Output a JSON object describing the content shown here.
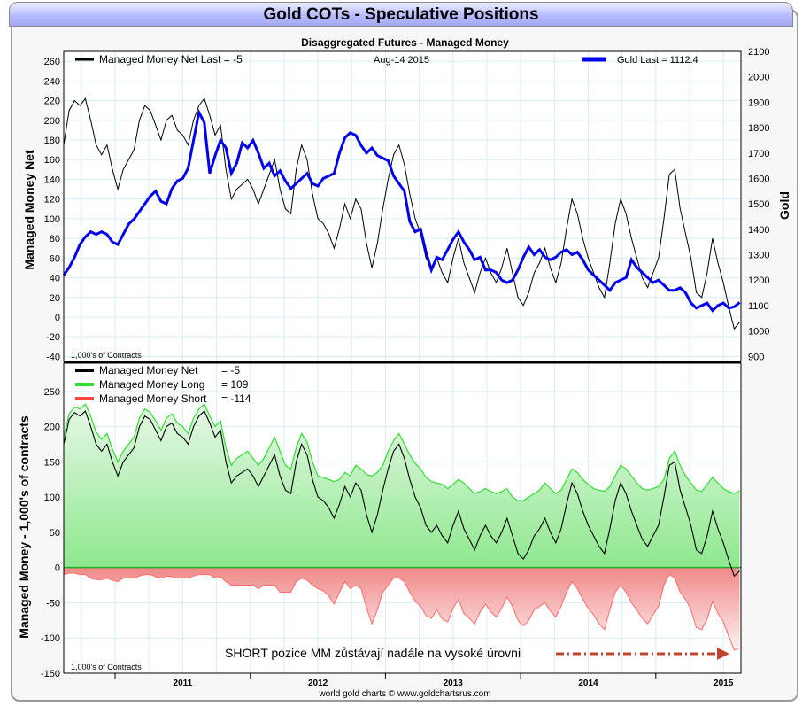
{
  "header": {
    "title": "Gold COTs - Speculative Positions",
    "subtitle": "Disaggregated Futures - Managed Money"
  },
  "footer": {
    "credit": "world gold charts © www.goldchartsrus.com"
  },
  "chart_data": [
    {
      "type": "line",
      "panel": "top",
      "date_label": "Aug-14  2015",
      "legend": [
        {
          "label": "Managed Money Net   Last = -5",
          "color": "#000000"
        },
        {
          "label": "Gold Last = 1112.4",
          "color": "#0000ee"
        }
      ],
      "ylabel_left": "Managed Money Net",
      "ylabel_right": "Gold",
      "units_note": "1,000's of Contracts",
      "ylim_left": [
        -45,
        270
      ],
      "ylim_right": [
        880,
        2100
      ],
      "yticks_left": [
        260,
        240,
        220,
        200,
        180,
        160,
        140,
        120,
        100,
        80,
        60,
        40,
        20,
        0,
        -20,
        -40
      ],
      "yticks_right": [
        2100,
        2000,
        1900,
        1800,
        1700,
        1600,
        1500,
        1400,
        1300,
        1200,
        1100,
        1000,
        900
      ],
      "x_years": [
        "2011",
        "2012",
        "2013",
        "2014",
        "2015"
      ],
      "xlim": [
        2010.62,
        2015.63
      ],
      "series": [
        {
          "name": "Managed Money Net",
          "color": "#000000",
          "axis": "left",
          "x": [
            2010.62,
            2010.66,
            2010.7,
            2010.74,
            2010.78,
            2010.82,
            2010.86,
            2010.9,
            2010.94,
            2010.98,
            2011.02,
            2011.06,
            2011.1,
            2011.14,
            2011.18,
            2011.22,
            2011.26,
            2011.3,
            2011.34,
            2011.38,
            2011.42,
            2011.46,
            2011.5,
            2011.54,
            2011.58,
            2011.62,
            2011.66,
            2011.7,
            2011.74,
            2011.78,
            2011.82,
            2011.86,
            2011.9,
            2011.94,
            2011.98,
            2012.02,
            2012.06,
            2012.1,
            2012.14,
            2012.18,
            2012.22,
            2012.26,
            2012.3,
            2012.34,
            2012.38,
            2012.42,
            2012.46,
            2012.5,
            2012.54,
            2012.58,
            2012.62,
            2012.66,
            2012.7,
            2012.74,
            2012.78,
            2012.82,
            2012.86,
            2012.9,
            2012.94,
            2012.98,
            2013.02,
            2013.06,
            2013.1,
            2013.14,
            2013.18,
            2013.22,
            2013.26,
            2013.3,
            2013.34,
            2013.38,
            2013.42,
            2013.46,
            2013.5,
            2013.54,
            2013.58,
            2013.62,
            2013.66,
            2013.7,
            2013.74,
            2013.78,
            2013.82,
            2013.86,
            2013.9,
            2013.94,
            2013.98,
            2014.02,
            2014.06,
            2014.1,
            2014.14,
            2014.18,
            2014.22,
            2014.26,
            2014.3,
            2014.34,
            2014.38,
            2014.42,
            2014.46,
            2014.5,
            2014.54,
            2014.58,
            2014.62,
            2014.66,
            2014.7,
            2014.74,
            2014.78,
            2014.82,
            2014.86,
            2014.9,
            2014.94,
            2014.98,
            2015.02,
            2015.06,
            2015.1,
            2015.14,
            2015.18,
            2015.22,
            2015.26,
            2015.3,
            2015.34,
            2015.38,
            2015.42,
            2015.46,
            2015.5,
            2015.54,
            2015.58,
            2015.62
          ],
          "values": [
            175,
            210,
            220,
            215,
            222,
            200,
            175,
            165,
            175,
            150,
            130,
            150,
            160,
            170,
            200,
            215,
            210,
            195,
            180,
            200,
            205,
            190,
            185,
            175,
            200,
            215,
            222,
            205,
            185,
            195,
            150,
            120,
            130,
            135,
            140,
            130,
            115,
            130,
            145,
            160,
            130,
            110,
            105,
            150,
            175,
            160,
            125,
            100,
            95,
            85,
            70,
            90,
            115,
            100,
            120,
            110,
            75,
            50,
            75,
            110,
            140,
            165,
            175,
            155,
            125,
            100,
            85,
            60,
            50,
            60,
            45,
            35,
            60,
            80,
            55,
            40,
            25,
            45,
            60,
            45,
            35,
            50,
            70,
            45,
            20,
            12,
            25,
            45,
            55,
            70,
            50,
            35,
            55,
            90,
            120,
            105,
            80,
            60,
            45,
            30,
            20,
            55,
            95,
            120,
            105,
            80,
            60,
            40,
            30,
            45,
            60,
            100,
            145,
            150,
            110,
            85,
            60,
            25,
            20,
            45,
            80,
            55,
            35,
            10,
            -12,
            -5
          ]
        },
        {
          "name": "Gold",
          "color": "#0000ee",
          "axis": "right",
          "x": [
            2010.62,
            2010.66,
            2010.7,
            2010.74,
            2010.78,
            2010.82,
            2010.86,
            2010.9,
            2010.94,
            2010.98,
            2011.02,
            2011.06,
            2011.1,
            2011.14,
            2011.18,
            2011.22,
            2011.26,
            2011.3,
            2011.34,
            2011.38,
            2011.42,
            2011.46,
            2011.5,
            2011.54,
            2011.58,
            2011.62,
            2011.66,
            2011.7,
            2011.74,
            2011.78,
            2011.82,
            2011.86,
            2011.9,
            2011.94,
            2011.98,
            2012.02,
            2012.06,
            2012.1,
            2012.14,
            2012.18,
            2012.22,
            2012.26,
            2012.3,
            2012.34,
            2012.38,
            2012.42,
            2012.46,
            2012.5,
            2012.54,
            2012.58,
            2012.62,
            2012.66,
            2012.7,
            2012.74,
            2012.78,
            2012.82,
            2012.86,
            2012.9,
            2012.94,
            2012.98,
            2013.02,
            2013.06,
            2013.1,
            2013.14,
            2013.18,
            2013.22,
            2013.26,
            2013.3,
            2013.34,
            2013.38,
            2013.42,
            2013.46,
            2013.5,
            2013.54,
            2013.58,
            2013.62,
            2013.66,
            2013.7,
            2013.74,
            2013.78,
            2013.82,
            2013.86,
            2013.9,
            2013.94,
            2013.98,
            2014.02,
            2014.06,
            2014.1,
            2014.14,
            2014.18,
            2014.22,
            2014.26,
            2014.3,
            2014.34,
            2014.38,
            2014.42,
            2014.46,
            2014.5,
            2014.54,
            2014.58,
            2014.62,
            2014.66,
            2014.7,
            2014.74,
            2014.78,
            2014.82,
            2014.86,
            2014.9,
            2014.94,
            2014.98,
            2015.02,
            2015.06,
            2015.1,
            2015.14,
            2015.18,
            2015.22,
            2015.26,
            2015.3,
            2015.34,
            2015.38,
            2015.42,
            2015.46,
            2015.5,
            2015.54,
            2015.58,
            2015.62
          ],
          "values": [
            1220,
            1250,
            1290,
            1340,
            1370,
            1390,
            1380,
            1390,
            1380,
            1350,
            1340,
            1380,
            1420,
            1440,
            1470,
            1500,
            1530,
            1550,
            1510,
            1500,
            1560,
            1590,
            1600,
            1640,
            1750,
            1860,
            1820,
            1620,
            1690,
            1750,
            1720,
            1620,
            1660,
            1740,
            1720,
            1750,
            1700,
            1640,
            1660,
            1610,
            1630,
            1590,
            1560,
            1580,
            1600,
            1620,
            1580,
            1570,
            1600,
            1610,
            1620,
            1700,
            1760,
            1780,
            1770,
            1730,
            1700,
            1720,
            1690,
            1680,
            1670,
            1610,
            1580,
            1550,
            1430,
            1390,
            1400,
            1310,
            1240,
            1290,
            1280,
            1320,
            1360,
            1390,
            1350,
            1320,
            1280,
            1290,
            1240,
            1240,
            1230,
            1200,
            1190,
            1200,
            1240,
            1290,
            1330,
            1300,
            1320,
            1290,
            1280,
            1290,
            1310,
            1320,
            1300,
            1310,
            1280,
            1240,
            1220,
            1200,
            1180,
            1160,
            1190,
            1200,
            1210,
            1280,
            1250,
            1230,
            1210,
            1190,
            1200,
            1180,
            1160,
            1160,
            1170,
            1150,
            1110,
            1090,
            1100,
            1110,
            1080,
            1100,
            1110,
            1090,
            1095,
            1112
          ]
        }
      ]
    },
    {
      "type": "area",
      "panel": "bottom",
      "legend": [
        {
          "label": "Managed Money Net",
          "value": "= -5",
          "color": "#000000"
        },
        {
          "label": "Managed Money Long",
          "value": "= 109",
          "color": "#33dd33"
        },
        {
          "label": "Managed Money Short",
          "value": "= -114",
          "color": "#ff4444"
        }
      ],
      "ylabel": "Managed Money - 1,000's of contracts",
      "units_note": "1,000's of Contracts",
      "ylim": [
        -150,
        290
      ],
      "yticks": [
        250,
        200,
        150,
        100,
        50,
        0,
        -50,
        -100,
        -150
      ],
      "annotation": "SHORT pozice MM zůstávají nadále na vysoké úrovni",
      "series": [
        {
          "name": "Managed Money Long",
          "color": "#33dd33",
          "values": [
            185,
            218,
            228,
            225,
            232,
            215,
            192,
            182,
            190,
            168,
            150,
            165,
            175,
            185,
            212,
            225,
            220,
            208,
            195,
            212,
            218,
            205,
            200,
            190,
            212,
            225,
            232,
            215,
            200,
            208,
            170,
            145,
            155,
            160,
            165,
            155,
            145,
            155,
            170,
            185,
            165,
            145,
            140,
            170,
            190,
            178,
            150,
            130,
            128,
            125,
            122,
            125,
            135,
            130,
            145,
            140,
            132,
            130,
            135,
            145,
            165,
            180,
            190,
            175,
            160,
            148,
            140,
            128,
            122,
            120,
            118,
            112,
            118,
            125,
            120,
            112,
            105,
            108,
            112,
            108,
            105,
            108,
            112,
            100,
            95,
            95,
            100,
            105,
            110,
            120,
            112,
            105,
            110,
            125,
            140,
            135,
            125,
            118,
            112,
            110,
            108,
            115,
            130,
            145,
            140,
            130,
            120,
            112,
            110,
            112,
            115,
            125,
            155,
            165,
            145,
            130,
            120,
            110,
            108,
            118,
            128,
            120,
            112,
            108,
            105,
            109
          ]
        },
        {
          "name": "Managed Money Short",
          "color": "#ff4444",
          "values": [
            -10,
            -8,
            -8,
            -10,
            -10,
            -15,
            -17,
            -17,
            -15,
            -18,
            -20,
            -15,
            -15,
            -15,
            -12,
            -10,
            -10,
            -13,
            -15,
            -12,
            -13,
            -15,
            -15,
            -15,
            -12,
            -10,
            -10,
            -10,
            -15,
            -13,
            -20,
            -25,
            -25,
            -25,
            -25,
            -25,
            -30,
            -25,
            -25,
            -25,
            -35,
            -35,
            -35,
            -20,
            -15,
            -18,
            -25,
            -30,
            -33,
            -40,
            -52,
            -35,
            -20,
            -30,
            -25,
            -30,
            -57,
            -80,
            -60,
            -35,
            -25,
            -15,
            -15,
            -20,
            -35,
            -48,
            -55,
            -68,
            -72,
            -60,
            -73,
            -77,
            -58,
            -45,
            -65,
            -72,
            -80,
            -63,
            -52,
            -63,
            -70,
            -58,
            -42,
            -55,
            -75,
            -83,
            -75,
            -60,
            -55,
            -50,
            -62,
            -70,
            -55,
            -35,
            -20,
            -30,
            -45,
            -58,
            -67,
            -80,
            -88,
            -60,
            -35,
            -25,
            -35,
            -50,
            -60,
            -72,
            -80,
            -67,
            -55,
            -25,
            -10,
            -15,
            -35,
            -45,
            -60,
            -85,
            -88,
            -73,
            -48,
            -65,
            -77,
            -98,
            -117,
            -114
          ]
        },
        {
          "name": "Managed Money Net",
          "color": "#000000",
          "values": [
            175,
            210,
            220,
            215,
            222,
            200,
            175,
            165,
            175,
            150,
            130,
            150,
            160,
            170,
            200,
            215,
            210,
            195,
            180,
            200,
            205,
            190,
            185,
            175,
            200,
            215,
            222,
            205,
            185,
            195,
            150,
            120,
            130,
            135,
            140,
            130,
            115,
            130,
            145,
            160,
            130,
            110,
            105,
            150,
            175,
            160,
            125,
            100,
            95,
            85,
            70,
            90,
            115,
            100,
            120,
            110,
            75,
            50,
            75,
            110,
            140,
            165,
            175,
            155,
            125,
            100,
            85,
            60,
            50,
            60,
            45,
            35,
            60,
            80,
            55,
            40,
            25,
            45,
            60,
            45,
            35,
            50,
            70,
            45,
            20,
            12,
            25,
            45,
            55,
            70,
            50,
            35,
            55,
            90,
            120,
            105,
            80,
            60,
            45,
            30,
            20,
            55,
            95,
            120,
            105,
            80,
            60,
            40,
            30,
            45,
            60,
            100,
            145,
            150,
            110,
            85,
            60,
            25,
            20,
            45,
            80,
            55,
            35,
            10,
            -12,
            -5
          ]
        }
      ]
    }
  ]
}
